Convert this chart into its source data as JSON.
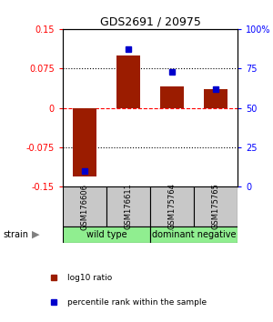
{
  "title": "GDS2691 / 20975",
  "samples": [
    "GSM176606",
    "GSM176611",
    "GSM175764",
    "GSM175765"
  ],
  "log10_ratio": [
    -0.13,
    0.1,
    0.04,
    0.035
  ],
  "percentile": [
    10,
    87,
    73,
    62
  ],
  "ylim_left": [
    -0.15,
    0.15
  ],
  "ylim_right": [
    0,
    100
  ],
  "yticks_left": [
    -0.15,
    -0.075,
    0,
    0.075,
    0.15
  ],
  "ytick_labels_left": [
    "-0.15",
    "-0.075",
    "0",
    "0.075",
    "0.15"
  ],
  "yticks_right": [
    0,
    25,
    50,
    75,
    100
  ],
  "ytick_labels_right": [
    "0",
    "25",
    "50",
    "75",
    "100%"
  ],
  "hlines": [
    -0.075,
    0,
    0.075
  ],
  "hline_styles": [
    "dotted",
    "dashed",
    "dotted"
  ],
  "hline_colors": [
    "black",
    "red",
    "black"
  ],
  "bar_color": "#9b1c00",
  "marker_color": "#0000cc",
  "sample_box_color": "#c8c8c8",
  "group1_color": "#90ee90",
  "group2_color": "#90ee90",
  "group1_label": "wild type",
  "group2_label": "dominant negative",
  "strain_label": "strain",
  "legend_items": [
    {
      "color": "#9b1c00",
      "label": "log10 ratio"
    },
    {
      "color": "#0000cc",
      "label": "percentile rank within the sample"
    }
  ],
  "bar_width": 0.55,
  "background_color": "#ffffff"
}
